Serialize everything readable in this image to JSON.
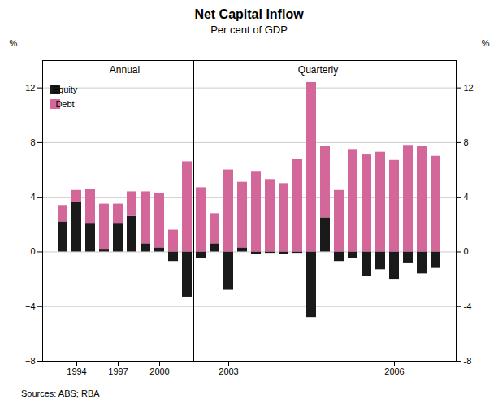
{
  "chart_data": {
    "type": "bar",
    "stacked": true,
    "title": "Net Capital Inflow",
    "subtitle": "Per cent of GDP",
    "source": "Sources: ABS; RBA",
    "ylabel": "%",
    "y2label": "%",
    "groups": [
      {
        "label": "Annual",
        "categories": [
          null,
          "1994",
          null,
          null,
          "1997",
          null,
          null,
          "2000",
          null,
          null
        ]
      },
      {
        "label": "Quarterly",
        "categories": [
          null,
          null,
          "2003",
          null,
          null,
          null,
          null,
          null,
          null,
          null,
          null,
          null,
          null,
          null,
          "2006",
          null,
          null,
          null
        ]
      }
    ],
    "series": [
      {
        "name": "Equity",
        "color": "#1a1a1a",
        "values": [
          2.2,
          3.6,
          2.1,
          0.2,
          2.1,
          2.6,
          0.6,
          0.3,
          -0.7,
          -3.3,
          -0.5,
          0.6,
          -2.8,
          0.3,
          -0.2,
          -0.1,
          -0.2,
          -0.1,
          -4.8,
          2.5,
          -0.7,
          -0.5,
          -1.8,
          -1.3,
          -2.0,
          -0.8,
          -1.6,
          -1.2
        ]
      },
      {
        "name": "Debt",
        "color": "#d4679a",
        "values": [
          1.2,
          0.9,
          2.5,
          3.3,
          1.4,
          1.8,
          3.8,
          4.0,
          1.6,
          6.6,
          4.7,
          2.2,
          6.0,
          4.8,
          5.9,
          5.3,
          5.0,
          6.8,
          12.4,
          5.2,
          4.5,
          7.5,
          7.1,
          7.3,
          6.7,
          7.8,
          7.7,
          7.0
        ]
      }
    ],
    "ylim": [
      -8,
      14
    ],
    "yticks": [
      -8,
      -4,
      0,
      4,
      8,
      12
    ],
    "y2lim": [
      -8,
      14
    ],
    "y2ticks": [
      -8,
      -4,
      0,
      4,
      8,
      12
    ],
    "grid": true,
    "legend": "upper left"
  }
}
